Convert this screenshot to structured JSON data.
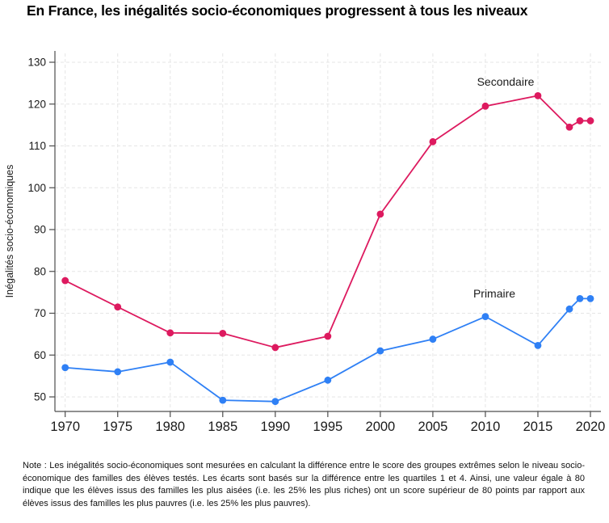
{
  "chart_data": {
    "type": "line",
    "title": "En France, les inégalités socio-économiques progressent à tous les niveaux",
    "ylabel": "Inégalités socio-économiques",
    "xlabel": "",
    "xticks": [
      1970,
      1975,
      1980,
      1985,
      1990,
      1995,
      2000,
      2005,
      2010,
      2015,
      2020
    ],
    "yticks": [
      50,
      60,
      70,
      80,
      90,
      100,
      110,
      120,
      130
    ],
    "xlim": [
      1969,
      2021
    ],
    "ylim": [
      46,
      132
    ],
    "grid": true,
    "legend_position": "inline-labels",
    "series": [
      {
        "name": "Secondaire",
        "color": "#dd1a5f",
        "x": [
          1970,
          1975,
          1980,
          1985,
          1990,
          1995,
          2000,
          2005,
          2010,
          2015,
          2018,
          2019,
          2020
        ],
        "values": [
          77.8,
          71.5,
          65.3,
          65.2,
          61.8,
          64.5,
          93.7,
          111,
          119.5,
          122,
          114.5,
          116,
          116
        ]
      },
      {
        "name": "Primaire",
        "color": "#2f80f5",
        "x": [
          1970,
          1975,
          1980,
          1985,
          1990,
          1995,
          2000,
          2005,
          2010,
          2015,
          2018,
          2019,
          2020
        ],
        "values": [
          57,
          56,
          58.3,
          49.2,
          48.9,
          54,
          61,
          63.8,
          69.2,
          62.3,
          71,
          73.5,
          73.5
        ]
      }
    ]
  },
  "note": "Note : Les inégalités socio-économiques sont mesurées en calculant la différence entre le score des groupes extrêmes selon le niveau socio-économique des familles des élèves testés. Les écarts sont basés sur la différence entre les quartiles 1 et 4. Ainsi, une valeur égale à 80 indique que les élèves issus des familles les plus aisées (i.e. les 25% les plus riches) ont un score supérieur de 80 points par rapport aux élèves issus des familles les plus pauvres (i.e. les 25% les plus pauvres).",
  "colors": {
    "axis": "#4d4d4d",
    "grid": "#e5e5e5",
    "text": "#1a1a1a",
    "background": "#ffffff"
  }
}
